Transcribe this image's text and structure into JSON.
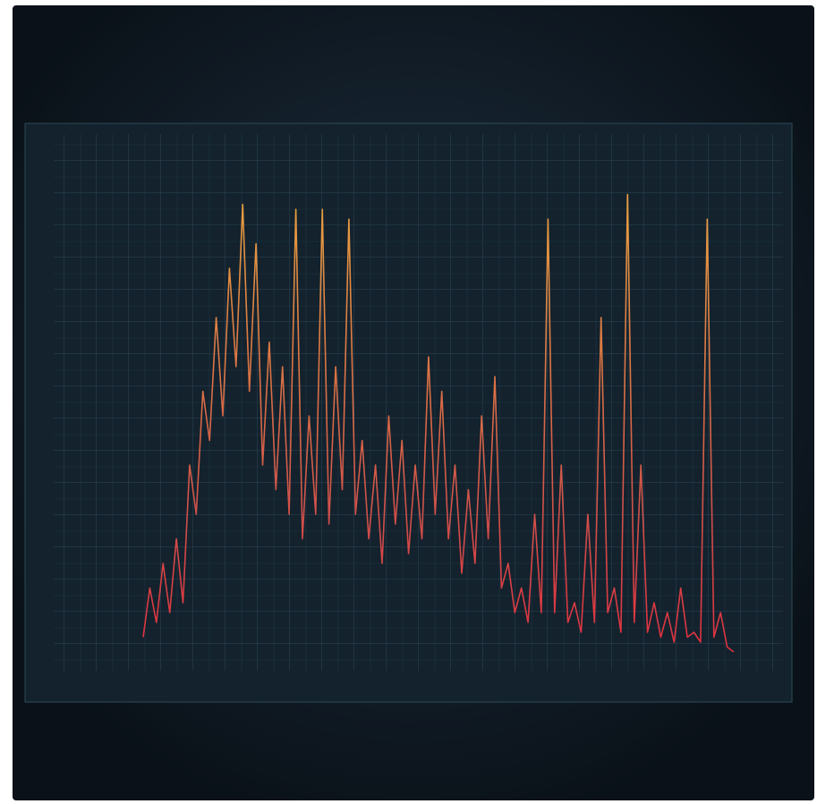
{
  "chart_data": {
    "type": "line",
    "color": "#e8a040",
    "ylim": [
      0,
      100
    ],
    "values": [
      5,
      15,
      8,
      20,
      10,
      25,
      12,
      40,
      30,
      55,
      45,
      70,
      50,
      80,
      60,
      93,
      55,
      85,
      40,
      65,
      35,
      60,
      30,
      92,
      25,
      50,
      30,
      92,
      28,
      60,
      35,
      90,
      30,
      45,
      25,
      40,
      20,
      50,
      28,
      45,
      22,
      40,
      25,
      62,
      30,
      55,
      25,
      40,
      18,
      35,
      20,
      50,
      25,
      58,
      15,
      20,
      10,
      15,
      8,
      30,
      10,
      90,
      10,
      40,
      8,
      12,
      6,
      30,
      8,
      70,
      10,
      15,
      6,
      95,
      8,
      40,
      6,
      12,
      5,
      10,
      4,
      15,
      5,
      6,
      4,
      90,
      5,
      10,
      3,
      2
    ]
  }
}
